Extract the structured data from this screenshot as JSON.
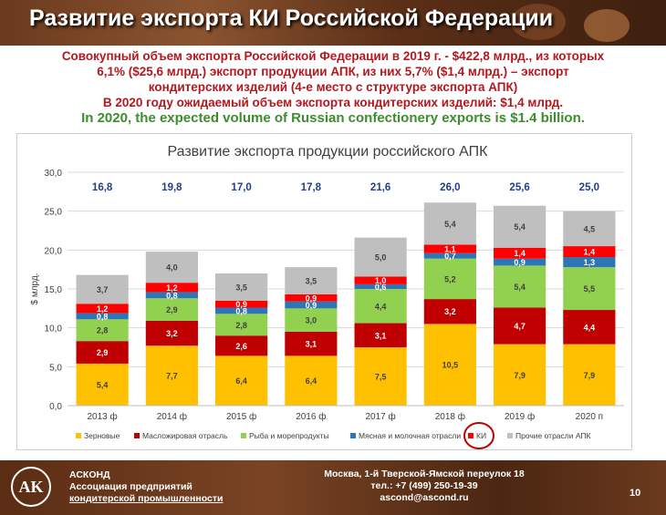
{
  "slide": {
    "title": "Развитие экспорта КИ Российской Федерации",
    "summary_lines": [
      "Совокупный объем экспорта Российской Федерации в 2019 г. - $422,8 млрд., из которых",
      "6,1% ($25,6 млрд.) экспорт продукции АПК, из них 5,7% ($1,4 млрд.) – экспорт",
      "кондитерских изделий (4-е место с структуре экспорта АПК)",
      "В 2020 году ожидаемый объем экспорта кондитерских изделий: $1,4 млрд."
    ],
    "summary_en": "In 2020, the expected volume of Russian confectionery exports is $1.4 billion.",
    "footer": {
      "org_name": "АСКОНД",
      "org_line2": "Ассоциация предприятий",
      "org_line3": "кондитерской промышленности",
      "address": "Москва, 1-й Тверской-Ямской переулок 18",
      "phone": "тел.: +7 (499) 250-19-39",
      "email": "ascond@ascond.ru",
      "page": "10"
    }
  },
  "chart_data": {
    "type": "bar",
    "stacked": true,
    "title": "Развитие экспорта продукции российского АПК",
    "ylabel": "$ млрд.",
    "xlabel": "",
    "ylim": [
      0,
      30
    ],
    "yticks": [
      "0,0",
      "5,0",
      "10,0",
      "15,0",
      "20,0",
      "25,0",
      "30,0"
    ],
    "grid": true,
    "legend_position": "bottom",
    "categories": [
      "2013 ф",
      "2014 ф",
      "2015 ф",
      "2016 ф",
      "2017 ф",
      "2018 ф",
      "2019 ф",
      "2020 п"
    ],
    "totals": [
      "16,8",
      "19,8",
      "17,0",
      "17,8",
      "21,6",
      "26,0",
      "25,6",
      "25,0"
    ],
    "series": [
      {
        "name": "Зерновые",
        "color": "#ffc000",
        "values": [
          5.4,
          7.7,
          6.4,
          6.4,
          7.5,
          10.5,
          7.9,
          7.9
        ],
        "labels": [
          "5,4",
          "7,7",
          "6,4",
          "6,4",
          "7,5",
          "10,5",
          "7,9",
          "7,9"
        ]
      },
      {
        "name": "Масложировая отрасль",
        "color": "#c00000",
        "values": [
          2.9,
          3.2,
          2.6,
          3.1,
          3.1,
          3.2,
          4.7,
          4.4
        ],
        "labels": [
          "2,9",
          "3,2",
          "2,6",
          "3,1",
          "3,1",
          "3,2",
          "4,7",
          "4,4"
        ]
      },
      {
        "name": "Рыба и морепродукты",
        "color": "#92d050",
        "values": [
          2.8,
          2.9,
          2.8,
          3.0,
          4.4,
          5.2,
          5.4,
          5.5
        ],
        "labels": [
          "2,8",
          "2,9",
          "2,8",
          "3,0",
          "4,4",
          "5,2",
          "5,4",
          "5,5"
        ]
      },
      {
        "name": "Мясная и молочная отрасли",
        "color": "#2e75b6",
        "values": [
          0.8,
          0.8,
          0.8,
          0.9,
          0.6,
          0.7,
          0.9,
          1.3
        ],
        "labels": [
          "0,8",
          "0,8",
          "0,8",
          "0,9",
          "0,6",
          "0,7",
          "0,9",
          "1,3"
        ]
      },
      {
        "name": "КИ",
        "color": "#ff0000",
        "values": [
          1.2,
          1.2,
          0.9,
          0.9,
          1.0,
          1.1,
          1.4,
          1.4
        ],
        "labels": [
          "1,2",
          "1,2",
          "0,9",
          "0,9",
          "1,0",
          "1,1",
          "1,4",
          "1,4"
        ]
      },
      {
        "name": "Прочие отрасли АПК",
        "color": "#bfbfbf",
        "values": [
          3.7,
          4.0,
          3.5,
          3.5,
          5.0,
          5.4,
          5.4,
          4.5
        ],
        "labels": [
          "3,7",
          "4,0",
          "3,5",
          "3,5",
          "5,0",
          "5,4",
          "5,4",
          "4,5"
        ]
      }
    ],
    "highlighted_legend_entry": "КИ",
    "highlight_color": "#c00000"
  }
}
